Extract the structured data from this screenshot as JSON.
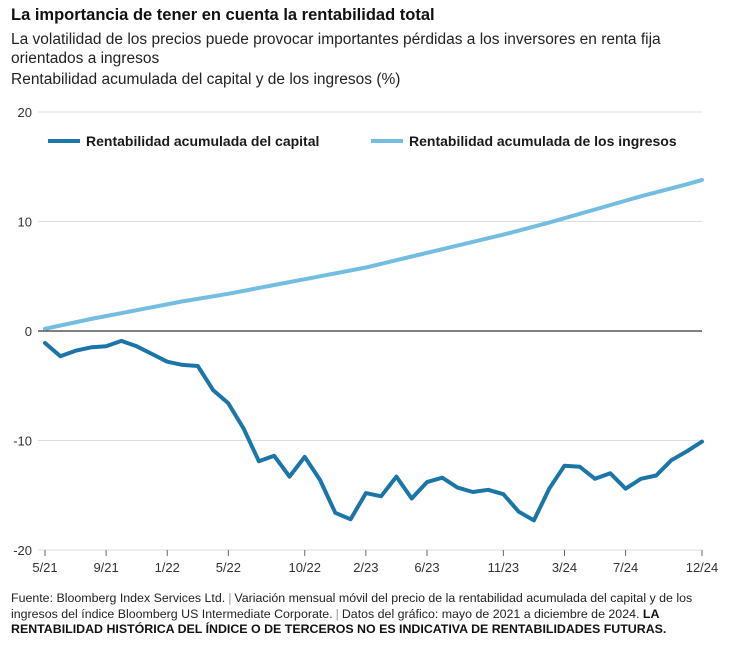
{
  "header": {
    "title": "La importancia de tener en cuenta la rentabilidad total",
    "subtitle": "La volatilidad de los precios puede provocar importantes pérdidas a los inversores en renta fija orientados a ingresos",
    "unit": "Rentabilidad acumulada del capital y de los ingresos (%)"
  },
  "footer": {
    "source": "Fuente: Bloomberg Index Services Ltd.",
    "note": "Variación mensual móvil del precio de la rentabilidad acumulada del capital y de los ingresos del índice Bloomberg US Intermediate Corporate.",
    "date": "Datos del gráfico: mayo de 2021 a diciembre de 2024.",
    "disclaimer": "LA RENTABILIDAD HISTÓRICA DEL ÍNDICE O DE TERCEROS NO ES INDICATIVA DE RENTABILIDADES FUTURAS."
  },
  "colors": {
    "capital": "#1a75a8",
    "income": "#73bee0",
    "axis": "#000000",
    "grid": "#dddddd",
    "text": "#222222"
  },
  "chart_data": {
    "type": "line",
    "ylim": [
      -20,
      20
    ],
    "yticks": [
      20,
      10,
      0,
      -10,
      -20
    ],
    "x_start": "2021-05",
    "x_end": "2024-12",
    "xticks": [
      {
        "label": "5/21",
        "date": "2021-05"
      },
      {
        "label": "9/21",
        "date": "2021-09"
      },
      {
        "label": "1/22",
        "date": "2022-01"
      },
      {
        "label": "5/22",
        "date": "2022-05"
      },
      {
        "label": "10/22",
        "date": "2022-10"
      },
      {
        "label": "2/23",
        "date": "2023-02"
      },
      {
        "label": "6/23",
        "date": "2023-06"
      },
      {
        "label": "11/23",
        "date": "2023-11"
      },
      {
        "label": "3/24",
        "date": "2024-03"
      },
      {
        "label": "7/24",
        "date": "2024-07"
      },
      {
        "label": "12/24",
        "date": "2024-12"
      }
    ],
    "legend_position": "top",
    "series": [
      {
        "name": "Rentabilidad acumulada del capital",
        "color": "#1a75a8",
        "x": [
          "2021-05",
          "2021-06",
          "2021-07",
          "2021-08",
          "2021-09",
          "2021-10",
          "2021-11",
          "2021-12",
          "2022-01",
          "2022-02",
          "2022-03",
          "2022-04",
          "2022-05",
          "2022-06",
          "2022-07",
          "2022-08",
          "2022-09",
          "2022-10",
          "2022-11",
          "2022-12",
          "2023-01",
          "2023-02",
          "2023-03",
          "2023-04",
          "2023-05",
          "2023-06",
          "2023-07",
          "2023-08",
          "2023-09",
          "2023-10",
          "2023-11",
          "2023-12",
          "2024-01",
          "2024-02",
          "2024-03",
          "2024-04",
          "2024-05",
          "2024-06",
          "2024-07",
          "2024-08",
          "2024-09",
          "2024-10",
          "2024-11",
          "2024-12"
        ],
        "values": [
          -1.1,
          -2.3,
          -1.8,
          -1.5,
          -1.4,
          -0.9,
          -1.4,
          -2.1,
          -2.8,
          -3.1,
          -3.2,
          -5.4,
          -6.6,
          -8.9,
          -11.9,
          -11.4,
          -13.3,
          -11.5,
          -13.6,
          -16.6,
          -17.2,
          -14.8,
          -15.1,
          -13.3,
          -15.3,
          -13.8,
          -13.4,
          -14.3,
          -14.7,
          -14.5,
          -14.9,
          -16.5,
          -17.3,
          -14.4,
          -12.3,
          -12.4,
          -13.5,
          -13.0,
          -14.4,
          -13.5,
          -13.2,
          -11.8,
          -11.0,
          -10.1
        ]
      },
      {
        "name": "Rentabilidad acumulada de los ingresos",
        "color": "#73bee0",
        "values_note": "",
        "x": [
          "2021-05",
          "2021-08",
          "2021-11",
          "2022-02",
          "2022-05",
          "2022-08",
          "2022-11",
          "2023-02",
          "2023-05",
          "2023-08",
          "2023-11",
          "2024-02",
          "2024-05",
          "2024-08",
          "2024-11",
          "2024-12"
        ],
        "values": [
          0.2,
          1.1,
          1.9,
          2.7,
          3.4,
          4.2,
          5.0,
          5.8,
          6.8,
          7.8,
          8.8,
          9.9,
          11.1,
          12.3,
          13.4,
          13.8
        ]
      }
    ]
  }
}
